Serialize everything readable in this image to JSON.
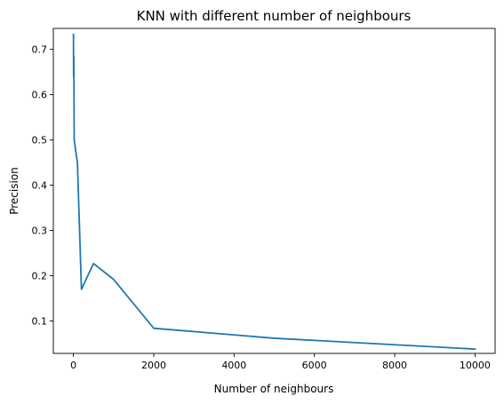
{
  "chart_data": {
    "type": "line",
    "title": "KNN with different number of neighbours",
    "xlabel": "Number of neighbours",
    "ylabel": "Precision",
    "xlim": [
      -500,
      10500
    ],
    "ylim": [
      0.0285,
      0.7464
    ],
    "xticks": [
      0,
      2000,
      4000,
      6000,
      8000,
      10000
    ],
    "xtick_labels": [
      "0",
      "2000",
      "4000",
      "6000",
      "8000",
      "10000"
    ],
    "yticks": [
      0.1,
      0.2,
      0.3,
      0.4,
      0.5,
      0.6,
      0.7
    ],
    "ytick_labels": [
      "0.1",
      "0.2",
      "0.3",
      "0.4",
      "0.5",
      "0.6",
      "0.7"
    ],
    "grid": false,
    "legend": "none",
    "series": [
      {
        "color": "#1f77b4",
        "x": [
          1,
          5,
          10,
          20,
          50,
          100,
          200,
          500,
          1000,
          2000,
          5000,
          10000
        ],
        "y": [
          0.733,
          0.64,
          0.685,
          0.5,
          0.48,
          0.45,
          0.17,
          0.227,
          0.192,
          0.084,
          0.062,
          0.038
        ]
      }
    ]
  }
}
